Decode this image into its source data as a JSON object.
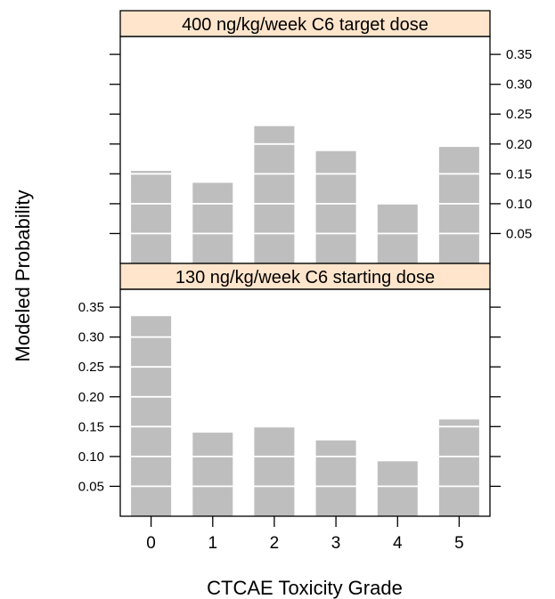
{
  "chart_data": {
    "type": "bar",
    "xlabel": "CTCAE Toxicity Grade",
    "ylabel": "Modeled Probability",
    "categories": [
      "0",
      "1",
      "2",
      "3",
      "4",
      "5"
    ],
    "ylim": [
      0,
      0.38
    ],
    "yticks": [
      "0.05",
      "0.10",
      "0.15",
      "0.20",
      "0.25",
      "0.30",
      "0.35"
    ],
    "grid": "white horizontal lines across bars",
    "bar_color": "#bebebe",
    "strip_color": "#ffe5cc",
    "panels": [
      {
        "title": "400 ng/kg/week C6 target dose",
        "values": [
          0.155,
          0.135,
          0.23,
          0.188,
          0.1,
          0.195
        ],
        "ytick_side": "right"
      },
      {
        "title": "130 ng/kg/week C6 starting dose",
        "values": [
          0.335,
          0.14,
          0.15,
          0.127,
          0.092,
          0.162
        ],
        "ytick_side": "left"
      }
    ]
  }
}
